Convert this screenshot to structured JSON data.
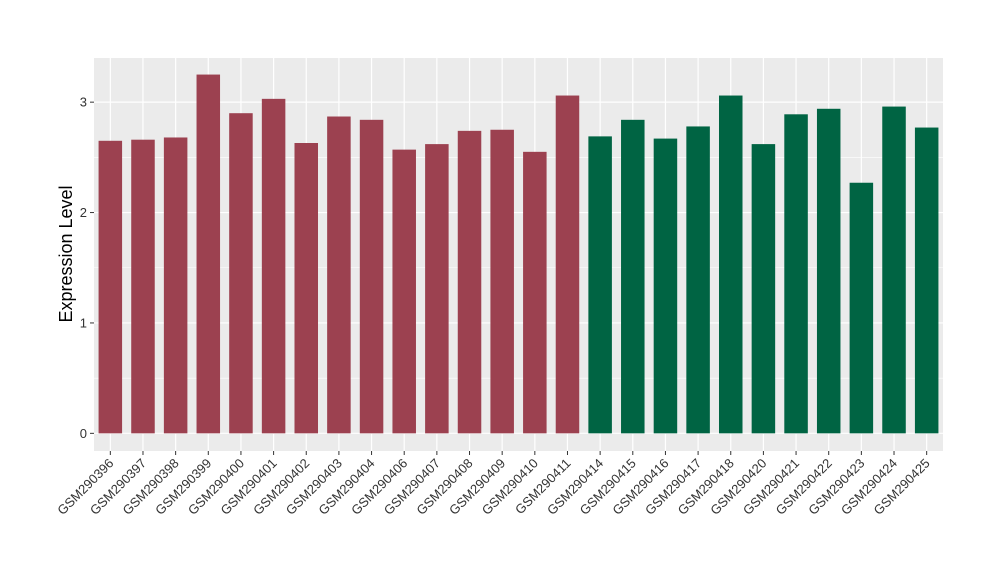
{
  "chart_data": {
    "type": "bar",
    "title": "",
    "xlabel": "",
    "ylabel": "Expression Level",
    "ylim": [
      -0.16,
      3.4
    ],
    "yticks": [
      0,
      1,
      2,
      3
    ],
    "grid": true,
    "legend": "none",
    "panel_background": "#ebebeb",
    "grid_color": "#ffffff",
    "categories": [
      "GSM290396",
      "GSM290397",
      "GSM290398",
      "GSM290399",
      "GSM290400",
      "GSM290401",
      "GSM290402",
      "GSM290403",
      "GSM290404",
      "GSM290406",
      "GSM290407",
      "GSM290408",
      "GSM290409",
      "GSM290410",
      "GSM290411",
      "GSM290414",
      "GSM290415",
      "GSM290416",
      "GSM290417",
      "GSM290418",
      "GSM290420",
      "GSM290421",
      "GSM290422",
      "GSM290423",
      "GSM290424",
      "GSM290425"
    ],
    "values": [
      2.65,
      2.66,
      2.68,
      3.25,
      2.9,
      3.03,
      2.63,
      2.87,
      2.84,
      2.57,
      2.62,
      2.74,
      2.75,
      2.55,
      3.06,
      2.69,
      2.84,
      2.67,
      2.78,
      3.06,
      2.62,
      2.89,
      2.94,
      2.27,
      2.96,
      2.77
    ],
    "colors": [
      "#9c4150",
      "#9c4150",
      "#9c4150",
      "#9c4150",
      "#9c4150",
      "#9c4150",
      "#9c4150",
      "#9c4150",
      "#9c4150",
      "#9c4150",
      "#9c4150",
      "#9c4150",
      "#9c4150",
      "#9c4150",
      "#9c4150",
      "#006443",
      "#006443",
      "#006443",
      "#006443",
      "#006443",
      "#006443",
      "#006443",
      "#006443",
      "#006443",
      "#006443",
      "#006443"
    ]
  }
}
